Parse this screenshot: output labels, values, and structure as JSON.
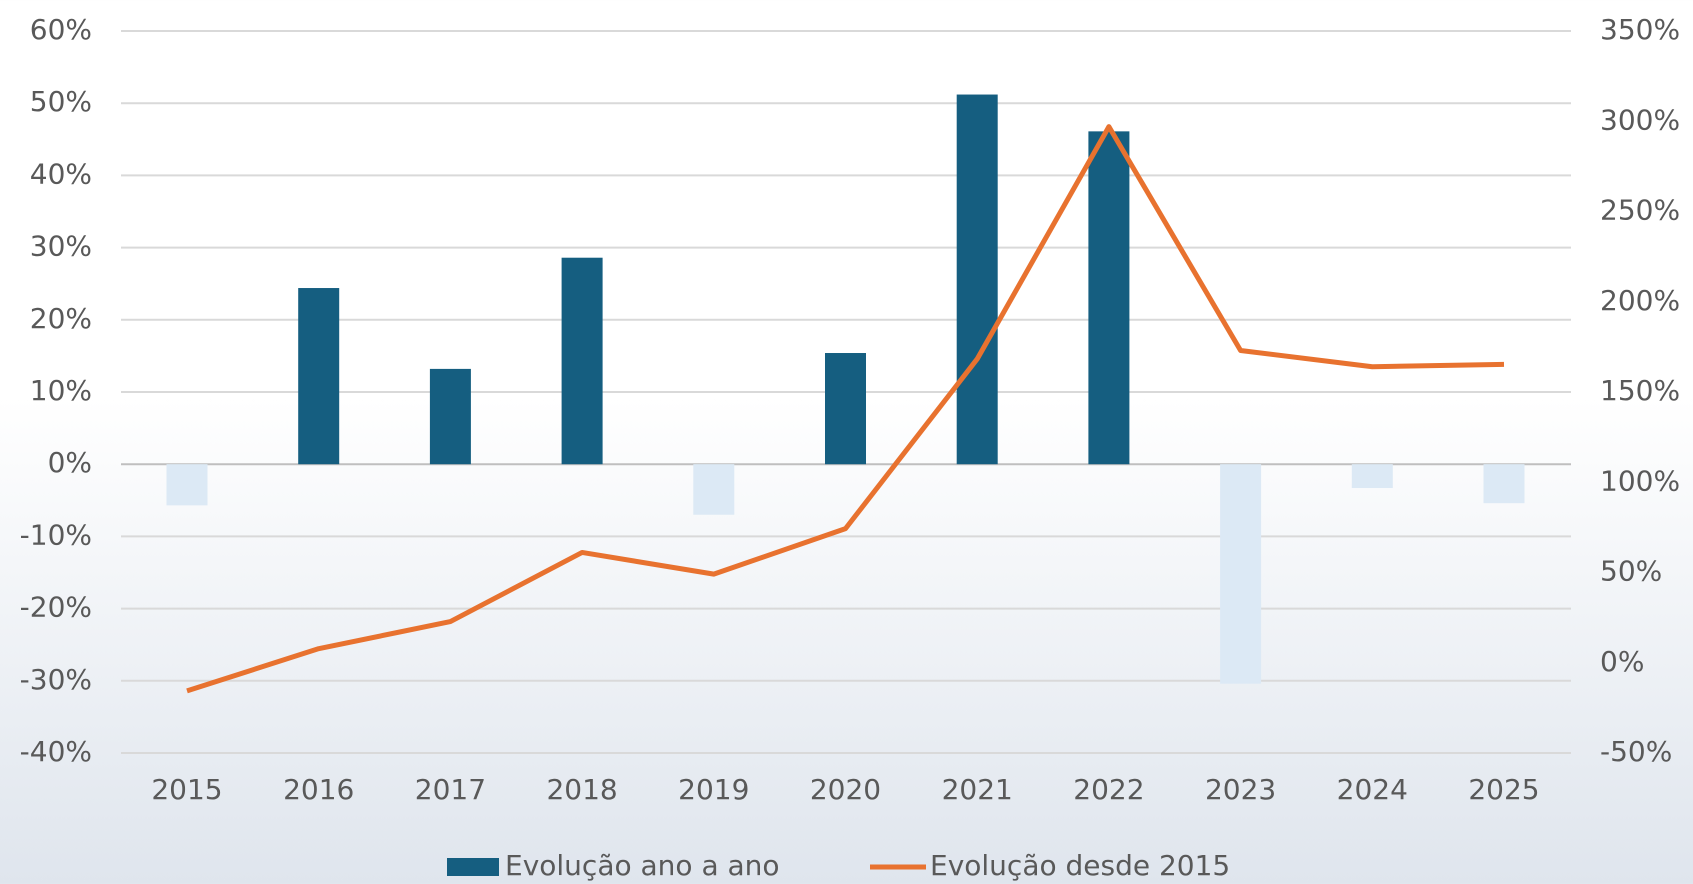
{
  "chart_data": {
    "type": "bar_line",
    "categories": [
      "2015",
      "2016",
      "2017",
      "2018",
      "2019",
      "2020",
      "2021",
      "2022",
      "2023",
      "2024",
      "2025"
    ],
    "series": [
      {
        "name": "Evolução ano a ano",
        "type": "bar",
        "color": "#155e80",
        "negative_color": "#dce9f5",
        "values": [
          -5.7,
          24.4,
          13.2,
          28.6,
          -7.0,
          15.4,
          51.2,
          46.1,
          -30.4,
          -3.3,
          -5.4
        ]
      },
      {
        "name": "Evolução desde 2015",
        "type": "line",
        "axis": "y2",
        "color": "#e8722f",
        "values": [
          -15.6,
          7.8,
          22.8,
          61.1,
          49.1,
          74.3,
          168.3,
          297,
          173,
          164,
          165.3
        ]
      }
    ],
    "ylim": [
      -40,
      60
    ],
    "yticks": [
      {
        "value": -40,
        "label": "-40%"
      },
      {
        "value": -30,
        "label": "-30%"
      },
      {
        "value": -20,
        "label": "-20%"
      },
      {
        "value": -10,
        "label": "-10%"
      },
      {
        "value": 0,
        "label": "0%"
      },
      {
        "value": 10,
        "label": "10%"
      },
      {
        "value": 20,
        "label": "20%"
      },
      {
        "value": 30,
        "label": "30%"
      },
      {
        "value": 40,
        "label": "40%"
      },
      {
        "value": 50,
        "label": "50%"
      },
      {
        "value": 60,
        "label": "60%"
      }
    ],
    "y2lim": [
      -50,
      350
    ],
    "y2ticks": [
      {
        "value": -50,
        "label": "-50%"
      },
      {
        "value": 0,
        "label": "0%"
      },
      {
        "value": 50,
        "label": "50%"
      },
      {
        "value": 100,
        "label": "100%"
      },
      {
        "value": 150,
        "label": "150%"
      },
      {
        "value": 200,
        "label": "200%"
      },
      {
        "value": 250,
        "label": "250%"
      },
      {
        "value": 300,
        "label": "300%"
      },
      {
        "value": 350,
        "label": "350%"
      }
    ],
    "grid": true,
    "legend": "bottom"
  }
}
